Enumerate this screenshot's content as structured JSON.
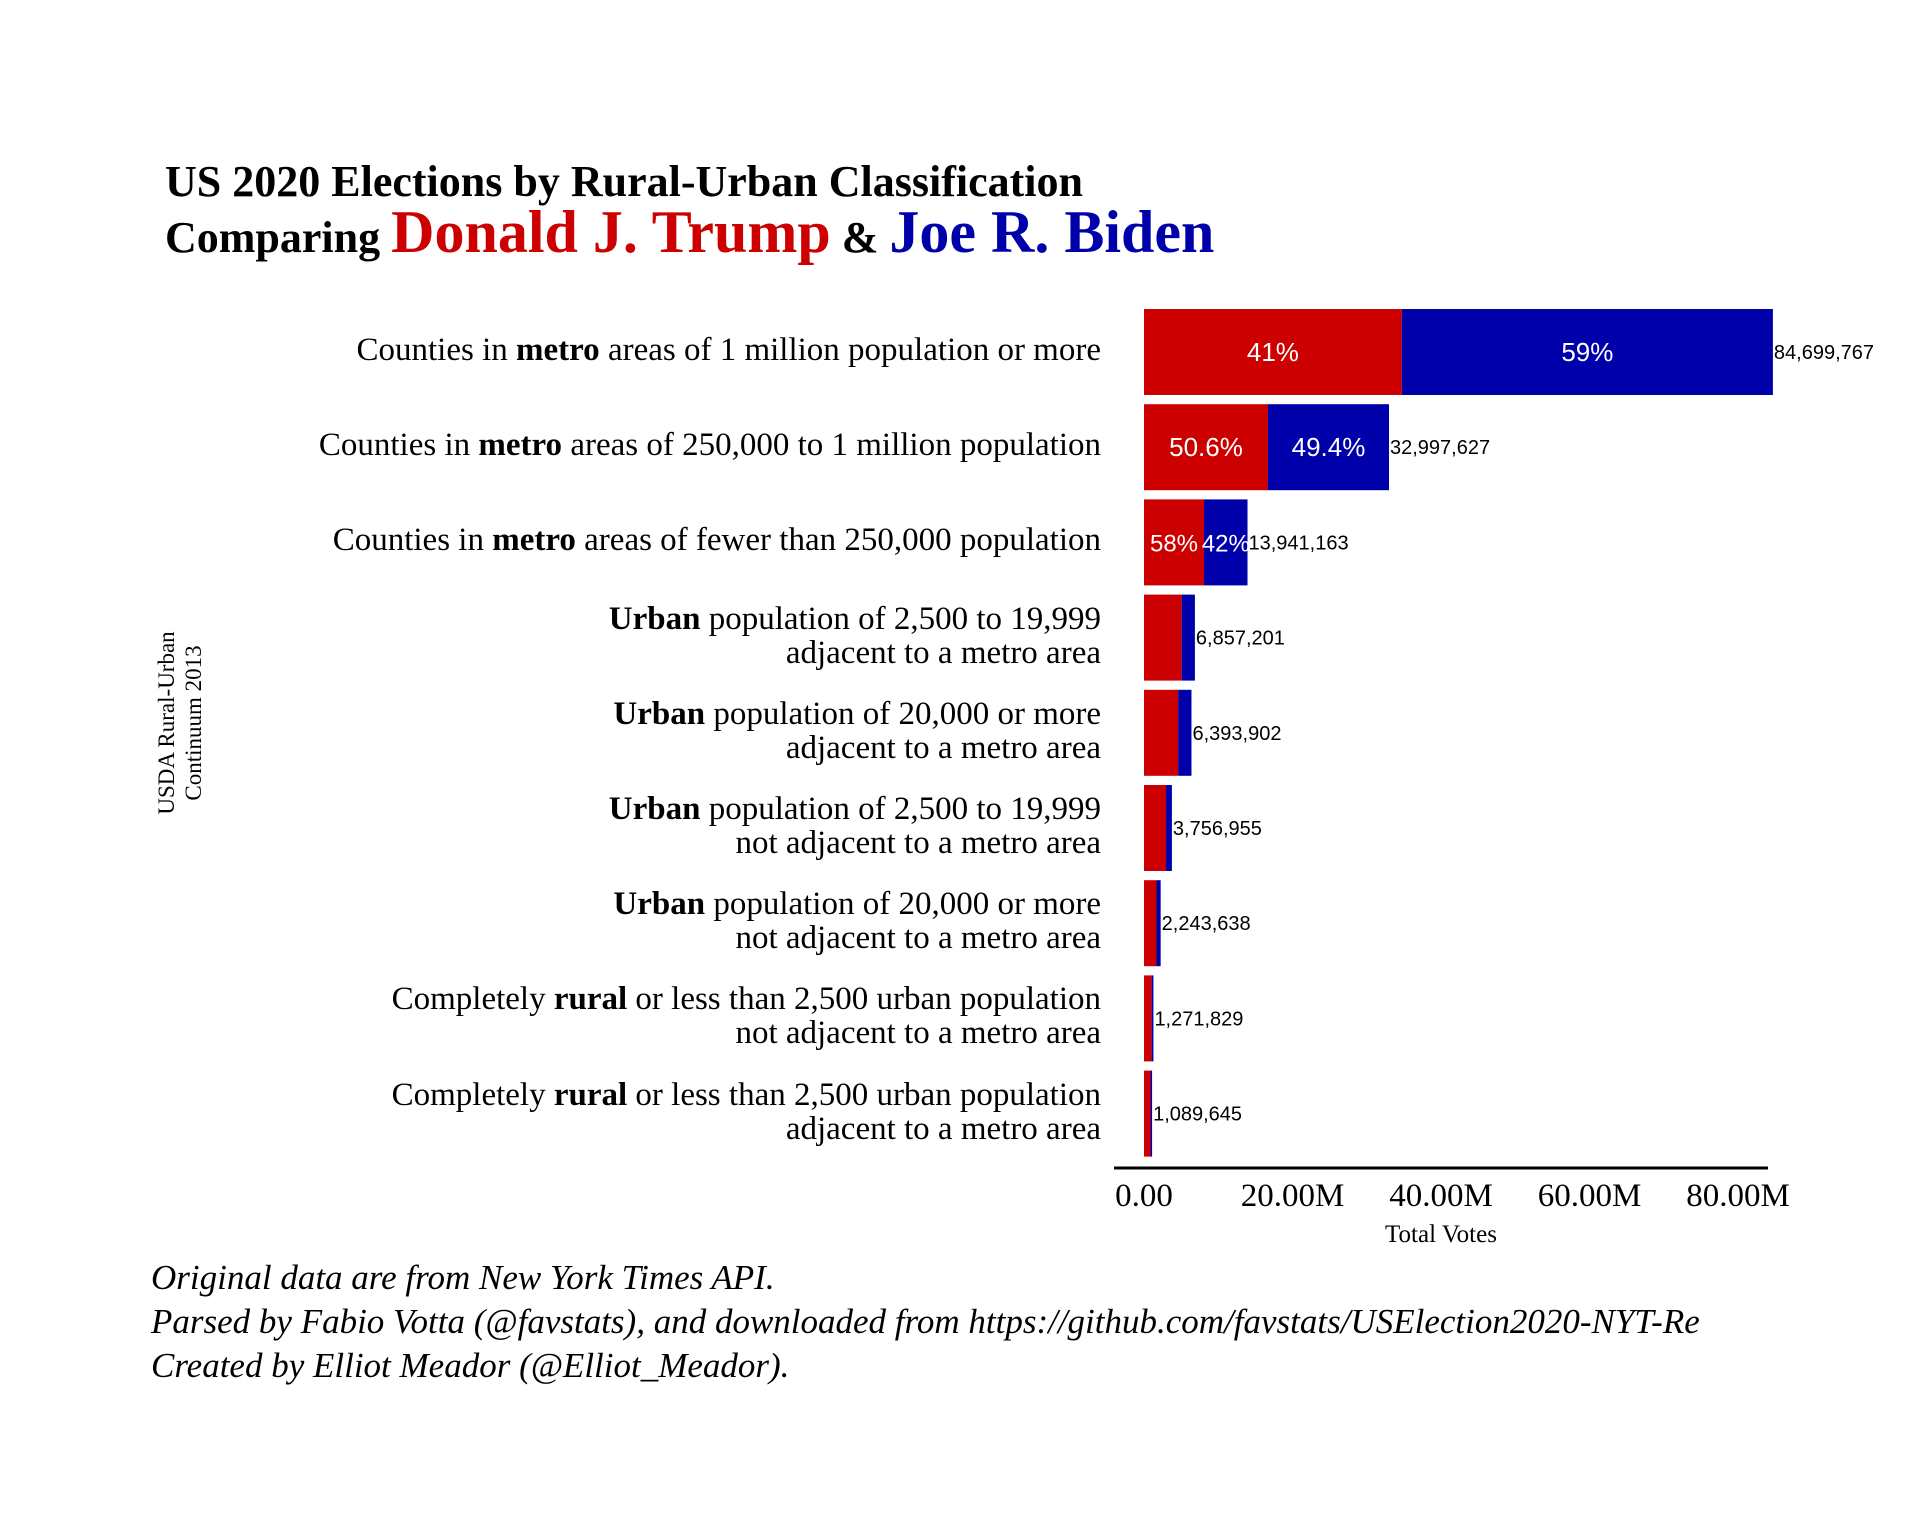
{
  "title": {
    "line1": "US 2020 Elections by Rural-Urban Classification",
    "line2_prefix": "Comparing",
    "trump_name": "Donald J. Trump",
    "joiner": "&",
    "biden_name": "Joe R. Biden"
  },
  "colors": {
    "trump": "#cc0000",
    "biden": "#0000aa",
    "axis": "#000000",
    "background": "#ffffff"
  },
  "ylabel": {
    "line1": "USDA Rural-Urban",
    "line2": "Continuum 2013"
  },
  "chart_data": {
    "type": "bar",
    "orientation": "horizontal",
    "stacked": true,
    "xlabel": "Total Votes",
    "xlim": [
      0,
      92000000
    ],
    "xticks": [
      0,
      20000000,
      40000000,
      60000000,
      80000000
    ],
    "xtick_labels": [
      "0.00",
      "20.00M",
      "40.00M",
      "60.00M",
      "80.00M"
    ],
    "grid": false,
    "categories": [
      {
        "pre": "Counties in ",
        "bold": "metro",
        "post": " areas of 1 million population or more",
        "line2": ""
      },
      {
        "pre": "Counties in ",
        "bold": "metro",
        "post": " areas of 250,000 to 1 million population",
        "line2": ""
      },
      {
        "pre": "Counties in ",
        "bold": "metro",
        "post": " areas of fewer than 250,000 population",
        "line2": ""
      },
      {
        "pre": "",
        "bold": "Urban",
        "post": " population of 2,500 to 19,999",
        "line2": "adjacent to a metro area"
      },
      {
        "pre": "",
        "bold": "Urban",
        "post": " population of 20,000 or more",
        "line2": "adjacent to a metro area"
      },
      {
        "pre": "",
        "bold": "Urban",
        "post": " population of 2,500 to 19,999",
        "line2": "not adjacent to a metro area"
      },
      {
        "pre": "",
        "bold": "Urban",
        "post": " population of 20,000 or more",
        "line2": "not adjacent to a metro area"
      },
      {
        "pre": "Completely ",
        "bold": "rural",
        "post": " or less than 2,500 urban population",
        "line2": "not adjacent to a metro area"
      },
      {
        "pre": "Completely ",
        "bold": "rural",
        "post": " or less than 2,500 urban population",
        "line2": "adjacent to a metro area"
      }
    ],
    "series": [
      {
        "name": "Donald J. Trump",
        "values": [
          34726905,
          16696799,
          8085875,
          5074329,
          4603609,
          2968000,
          1682729,
          1030000,
          880000
        ]
      },
      {
        "name": "Joe R. Biden",
        "values": [
          49972862,
          16300828,
          5855288,
          1782872,
          1790293,
          788955,
          560909,
          241829,
          209645
        ]
      }
    ],
    "totals": [
      84699767,
      32997627,
      13941163,
      6857201,
      6393902,
      3756955,
      2243638,
      1271829,
      1089645
    ],
    "total_labels": [
      "84,699,767",
      "32,997,627",
      "13,941,163",
      "6,857,201",
      "6,393,902",
      "3,756,955",
      "2,243,638",
      "1,271,829",
      "1,089,645"
    ],
    "pct_labels": [
      {
        "trump": "41%",
        "biden": "59%"
      },
      {
        "trump": "50.6%",
        "biden": "49.4%"
      },
      {
        "trump": "58%",
        "biden": "42%"
      },
      null,
      null,
      null,
      null,
      null,
      null
    ]
  },
  "caption": {
    "line1": "Original data are from New York Times API.",
    "line2": "Parsed by Fabio Votta (@favstats), and downloaded from https://github.com/favstats/USElection2020-NYT-Re",
    "line3": "Created by Elliot Meador (@Elliot_Meador)."
  }
}
